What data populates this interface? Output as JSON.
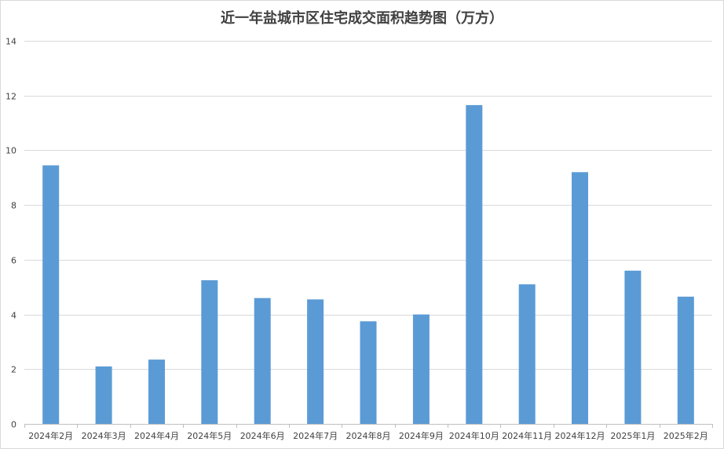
{
  "chart_data": {
    "type": "bar",
    "title": "近一年盐城市区住宅成交面积趋势图（万方）",
    "xlabel": "",
    "ylabel": "",
    "categories": [
      "2024年2月",
      "2024年3月",
      "2024年4月",
      "2024年5月",
      "2024年6月",
      "2024年7月",
      "2024年8月",
      "2024年9月",
      "2024年10月",
      "2024年11月",
      "2024年12月",
      "2025年1月",
      "2025年2月"
    ],
    "values": [
      9.45,
      2.1,
      2.35,
      5.25,
      4.6,
      4.55,
      3.75,
      4.0,
      11.65,
      5.1,
      9.2,
      5.6,
      4.65
    ],
    "ylim": [
      0,
      14
    ],
    "yticks": [
      0,
      2,
      4,
      6,
      8,
      10,
      12,
      14
    ],
    "grid": true,
    "legend": "none",
    "bar_color": "#5b9bd5",
    "grid_color": "#d9d9d9"
  }
}
